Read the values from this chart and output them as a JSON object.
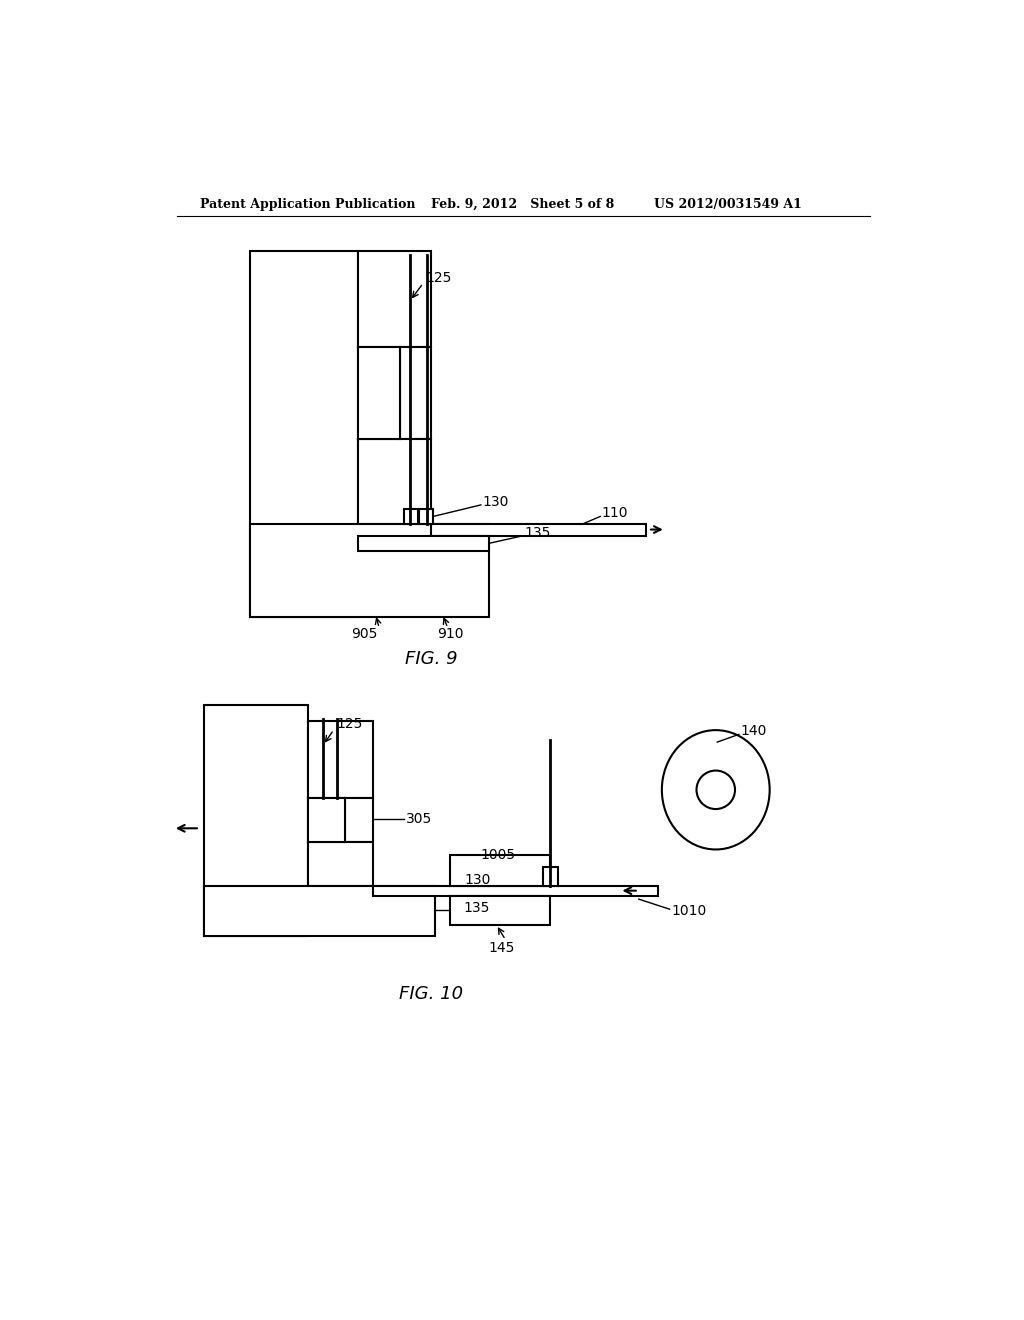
{
  "bg_color": "#ffffff",
  "header_left": "Patent Application Publication",
  "header_mid": "Feb. 9, 2012   Sheet 5 of 8",
  "header_right": "US 2012/0031549 A1",
  "fig9_label": "FIG. 9",
  "fig10_label": "FIG. 10",
  "hatch_pattern": "////",
  "line_color": "#000000"
}
